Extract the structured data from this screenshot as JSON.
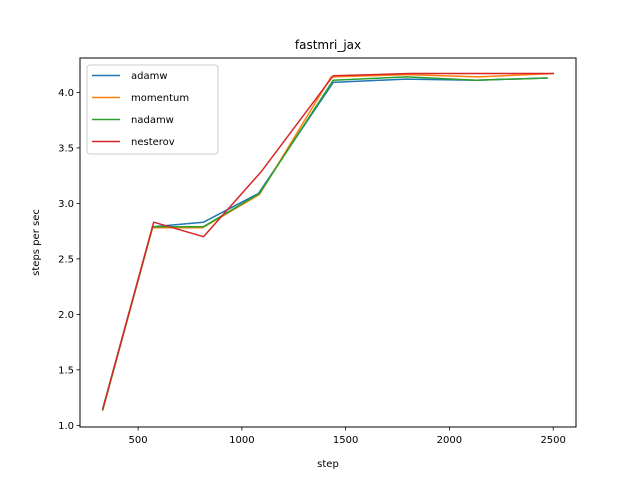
{
  "chart_data": {
    "type": "line",
    "title": "fastmri_jax",
    "xlabel": "step",
    "ylabel": "steps per sec",
    "xlim": [
      220,
      2610
    ],
    "ylim": [
      0.985,
      4.31
    ],
    "xticks": [
      500,
      1000,
      1500,
      2000,
      2500
    ],
    "yticks": [
      1.0,
      1.5,
      2.0,
      2.5,
      3.0,
      3.5,
      4.0
    ],
    "xtick_labels": [
      "500",
      "1000",
      "1500",
      "2000",
      "2500"
    ],
    "ytick_labels": [
      "1.0",
      "1.5",
      "2.0",
      "2.5",
      "3.0",
      "3.5",
      "4.0"
    ],
    "grid": false,
    "legend_position": "upper-left",
    "series": [
      {
        "name": "adamw",
        "color": "#1f77b4",
        "x": [
          330,
          570,
          815,
          1080,
          1440,
          1790,
          2130,
          2470
        ],
        "y": [
          1.15,
          2.79,
          2.83,
          3.09,
          4.09,
          4.12,
          4.11,
          4.13
        ]
      },
      {
        "name": "momentum",
        "color": "#ff7f0e",
        "x": [
          330,
          570,
          810,
          1085,
          1430,
          1800,
          2140,
          2500
        ],
        "y": [
          1.14,
          2.78,
          2.78,
          3.08,
          4.14,
          4.16,
          4.14,
          4.17
        ]
      },
      {
        "name": "nadamw",
        "color": "#2ca02c",
        "x": [
          330,
          570,
          815,
          1085,
          1440,
          1795,
          2130,
          2470
        ],
        "y": [
          1.14,
          2.79,
          2.79,
          3.09,
          4.11,
          4.14,
          4.11,
          4.13
        ]
      },
      {
        "name": "nesterov",
        "color": "#d62728",
        "x": [
          330,
          575,
          815,
          1095,
          1440,
          1810,
          2150,
          2500
        ],
        "y": [
          1.15,
          2.83,
          2.7,
          3.29,
          4.15,
          4.17,
          4.17,
          4.17
        ]
      }
    ]
  }
}
